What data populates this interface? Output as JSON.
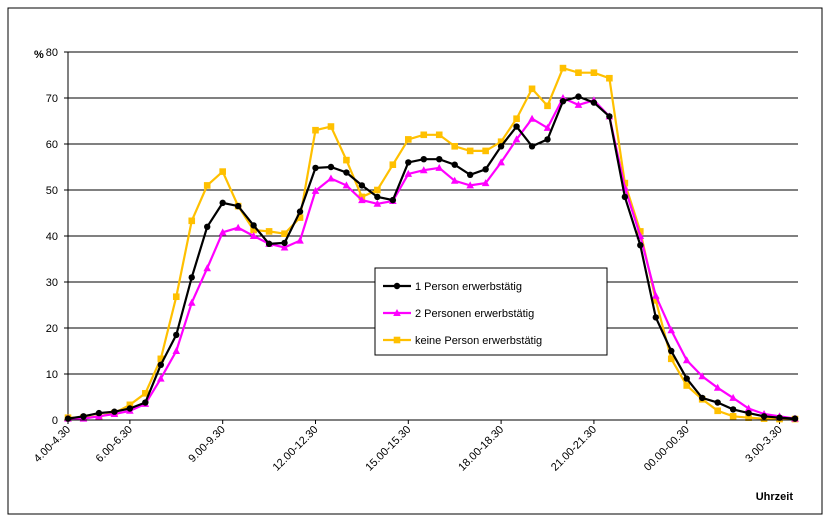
{
  "chart_data": {
    "type": "line",
    "y_label": "%",
    "x_label": "Uhrzeit",
    "categories": [
      "4.00-4.30",
      null,
      null,
      null,
      "6.00-6.30",
      null,
      null,
      null,
      null,
      null,
      "9.00-9.30",
      null,
      null,
      null,
      null,
      null,
      "12.00-12.30",
      null,
      null,
      null,
      null,
      null,
      "15.00-15.30",
      null,
      null,
      null,
      null,
      null,
      "18.00-18.30",
      null,
      null,
      null,
      null,
      null,
      "21.00-21.30",
      null,
      null,
      null,
      null,
      null,
      "00.00-00.30",
      null,
      null,
      null,
      null,
      null,
      "3.00-3.30",
      null
    ],
    "series": [
      {
        "name": "1 Person erwerbstätig",
        "color": "#000000",
        "marker": "circle",
        "values": [
          0.3,
          0.8,
          1.5,
          1.8,
          2.5,
          3.8,
          12,
          18.5,
          31,
          42,
          47.2,
          46.5,
          42.3,
          38.3,
          38.5,
          45.3,
          54.8,
          55,
          53.8,
          51,
          48.5,
          47.8,
          56,
          56.7,
          56.7,
          55.5,
          53.3,
          54.5,
          59.5,
          63.8,
          59.5,
          61,
          69.3,
          70.3,
          69,
          66,
          48.5,
          38,
          22.3,
          15,
          9,
          4.8,
          3.8,
          2.3,
          1.5,
          0.8,
          0.5,
          0.3
        ]
      },
      {
        "name": "2 Personen erwerbstätig",
        "color": "#ff00ff",
        "marker": "triangle",
        "values": [
          0.3,
          0.3,
          0.8,
          1.3,
          2,
          3.5,
          9,
          15,
          25.5,
          33,
          40.8,
          41.8,
          40,
          38.3,
          37.5,
          39,
          49.8,
          52.5,
          51,
          47.8,
          47,
          47.6,
          53.5,
          54.3,
          54.8,
          52,
          51,
          51.5,
          56,
          61,
          65.5,
          63.5,
          70,
          68.5,
          69.5,
          66,
          50.5,
          40,
          27,
          19.5,
          13,
          9.5,
          7,
          4.8,
          2.5,
          1.3,
          0.8,
          0.3
        ]
      },
      {
        "name": "keine Person erwerbstätig",
        "color": "#ffc000",
        "marker": "square",
        "values": [
          0.5,
          0.5,
          0.8,
          1.5,
          3.3,
          5.8,
          13.3,
          26.8,
          43.3,
          51,
          54,
          46.5,
          41.3,
          41,
          40.5,
          44,
          63,
          63.8,
          56.5,
          48.5,
          50,
          55.5,
          61,
          62,
          62,
          59.5,
          58.5,
          58.5,
          60.5,
          65.5,
          72,
          68.3,
          76.5,
          75.5,
          75.5,
          74.3,
          51.5,
          41,
          26,
          13.3,
          7.5,
          4.5,
          2,
          0.8,
          0.5,
          0.3,
          0.2,
          0.2
        ]
      }
    ],
    "ylim": [
      0,
      80
    ],
    "yticks": [
      0,
      10,
      20,
      30,
      40,
      50,
      60,
      70,
      80
    ],
    "grid": true
  }
}
